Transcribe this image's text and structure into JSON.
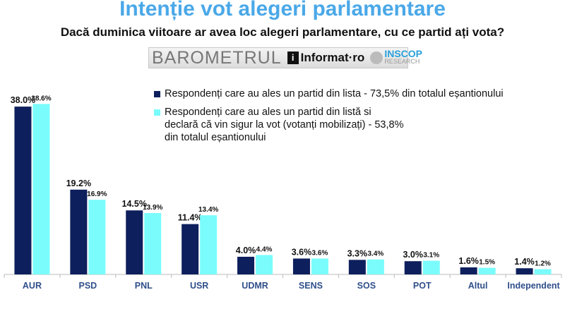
{
  "header": {
    "title": "Intenție vot alegeri parlamentare",
    "subtitle": "Dacă duminica viitoare ar avea loc alegeri parlamentare, cu ce partid ați vota?"
  },
  "logos": {
    "barometrul": "BAROMETRUL",
    "informat": "Informat·ro",
    "inscop": "INSCOP",
    "inscop_sub": "RESEARCH"
  },
  "chart_data": {
    "type": "bar",
    "categories": [
      "AUR",
      "PSD",
      "PNL",
      "USR",
      "UDMR",
      "SENS",
      "SOS",
      "POT",
      "Altul",
      "Independent"
    ],
    "series": [
      {
        "name": "Respondenți care au ales un partid din lista - 73,5% din totalul eșantionului",
        "color": "#0d1f5c",
        "values": [
          38.0,
          19.2,
          14.5,
          11.4,
          4.0,
          3.6,
          3.3,
          3.0,
          1.6,
          1.4
        ]
      },
      {
        "name": "Respondenți care au ales un partid din listă si declară că vin sigur la vot (votanți mobilizați) - 53,8% din totalul eșantionului",
        "color": "#7afcfc",
        "values": [
          38.6,
          16.9,
          13.9,
          13.4,
          4.4,
          3.6,
          3.4,
          3.1,
          1.5,
          1.2
        ]
      }
    ],
    "legend": "top-right",
    "grid": false,
    "data_labels": true,
    "unit": "%"
  }
}
